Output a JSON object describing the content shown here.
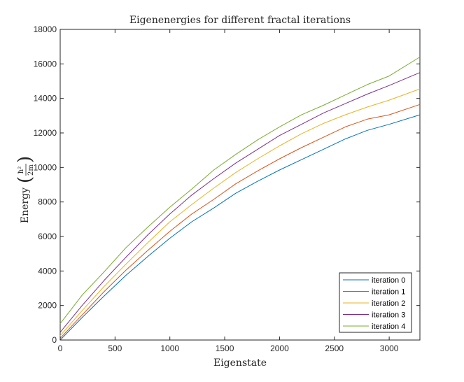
{
  "chart_data": {
    "type": "line",
    "title": "Eigenenergies for different fractal iterations",
    "xlabel": "Eigenstate",
    "ylabel": {
      "prefix": "Energy",
      "unit_numerator": "ħ²",
      "unit_denominator": "2m"
    },
    "xlim": [
      0,
      3280
    ],
    "ylim": [
      0,
      18000
    ],
    "xticks": [
      0,
      500,
      1000,
      1500,
      2000,
      2500,
      3000
    ],
    "yticks": [
      0,
      2000,
      4000,
      6000,
      8000,
      10000,
      12000,
      14000,
      16000,
      18000
    ],
    "grid": false,
    "legend_position": "bottom-right",
    "x": [
      0,
      200,
      400,
      600,
      800,
      1000,
      1200,
      1400,
      1600,
      1800,
      2000,
      2200,
      2400,
      2600,
      2800,
      3000,
      3280
    ],
    "series": [
      {
        "name": "iteration 0",
        "color": "#0072BD",
        "values": [
          0,
          1300,
          2550,
          3750,
          4850,
          5900,
          6850,
          7650,
          8500,
          9200,
          9850,
          10450,
          11050,
          11650,
          12150,
          12500,
          13050
        ]
      },
      {
        "name": "iteration 1",
        "color": "#D95319",
        "values": [
          100,
          1450,
          2800,
          4050,
          5200,
          6300,
          7300,
          8150,
          9050,
          9800,
          10500,
          11150,
          11750,
          12350,
          12800,
          13050,
          13650
        ]
      },
      {
        "name": "iteration 2",
        "color": "#EDB120",
        "values": [
          250,
          1700,
          3100,
          4400,
          5650,
          6850,
          7850,
          8800,
          9700,
          10500,
          11250,
          11950,
          12550,
          13050,
          13500,
          13900,
          14550
        ]
      },
      {
        "name": "iteration 3",
        "color": "#7E2F8E",
        "values": [
          450,
          2000,
          3450,
          4800,
          6100,
          7300,
          8400,
          9350,
          10250,
          11050,
          11850,
          12500,
          13150,
          13700,
          14250,
          14750,
          15500
        ]
      },
      {
        "name": "iteration 4",
        "color": "#77AC30",
        "values": [
          950,
          2600,
          3950,
          5350,
          6550,
          7700,
          8750,
          9850,
          10750,
          11600,
          12350,
          13050,
          13600,
          14200,
          14800,
          15300,
          16400
        ]
      }
    ]
  }
}
